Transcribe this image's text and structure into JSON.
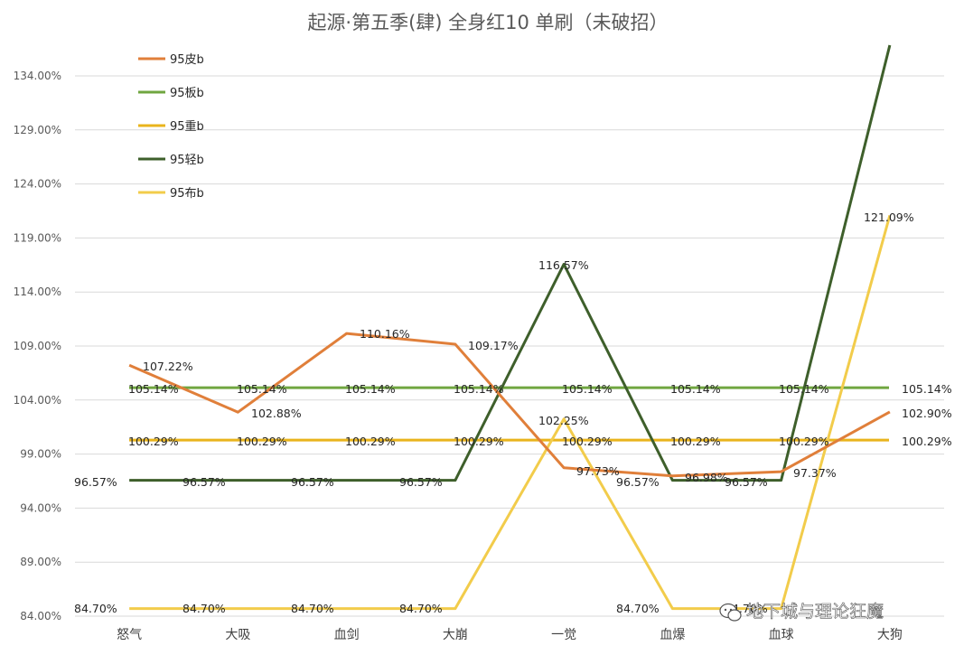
{
  "chart_data": {
    "type": "line",
    "title": "起源·第五季(肆)  全身红10 单刷（未破招）",
    "categories": [
      "怒气",
      "大吸",
      "血剑",
      "大崩",
      "一觉",
      "血爆",
      "血球",
      "大狗"
    ],
    "ylim": [
      84.0,
      136.0
    ],
    "y_ticks": [
      "84.00%",
      "89.00%",
      "94.00%",
      "99.00%",
      "104.00%",
      "109.00%",
      "114.00%",
      "119.00%",
      "124.00%",
      "129.00%",
      "134.00%"
    ],
    "grid": true,
    "legend_position": "top-left",
    "series": [
      {
        "name": "95皮b",
        "color": "#E07F3A",
        "values": [
          107.22,
          102.88,
          110.16,
          109.17,
          97.73,
          96.98,
          97.37,
          102.9
        ],
        "labels": [
          "107.22%",
          "102.88%",
          "110.16%",
          "109.17%",
          "97.73%",
          "96.98%",
          "97.37%",
          "102.90%"
        ]
      },
      {
        "name": "95板b",
        "color": "#70A640",
        "values": [
          105.14,
          105.14,
          105.14,
          105.14,
          105.14,
          105.14,
          105.14,
          105.14
        ],
        "labels": [
          "105.14%",
          "105.14%",
          "105.14%",
          "105.14%",
          "105.14%",
          "105.14%",
          "105.14%",
          "105.14%"
        ]
      },
      {
        "name": "95重b",
        "color": "#E9B41C",
        "values": [
          100.29,
          100.29,
          100.29,
          100.29,
          100.29,
          100.29,
          100.29,
          100.29
        ],
        "labels": [
          "100.29%",
          "100.29%",
          "100.29%",
          "100.29%",
          "100.29%",
          "100.29%",
          "100.29%",
          "100.29%"
        ]
      },
      {
        "name": "95轻b",
        "color": "#3E5F2B",
        "values": [
          96.57,
          96.57,
          96.57,
          96.57,
          116.57,
          96.57,
          96.57,
          136.5
        ],
        "labels": [
          "96.57%",
          "96.57%",
          "96.57%",
          "96.57%",
          "116.57%",
          "96.57%",
          "96.57%",
          ""
        ]
      },
      {
        "name": "95布b",
        "color": "#F2CC4B",
        "values": [
          84.7,
          84.7,
          84.7,
          84.7,
          102.25,
          84.7,
          84.7,
          121.09
        ],
        "labels": [
          "84.70%",
          "84.70%",
          "84.70%",
          "84.70%",
          "102.25%",
          "84.70%",
          "84.70%",
          "121.09%"
        ]
      }
    ]
  },
  "watermark": {
    "text": "地下城与理论狂魔",
    "icon": "wechat-icon"
  }
}
